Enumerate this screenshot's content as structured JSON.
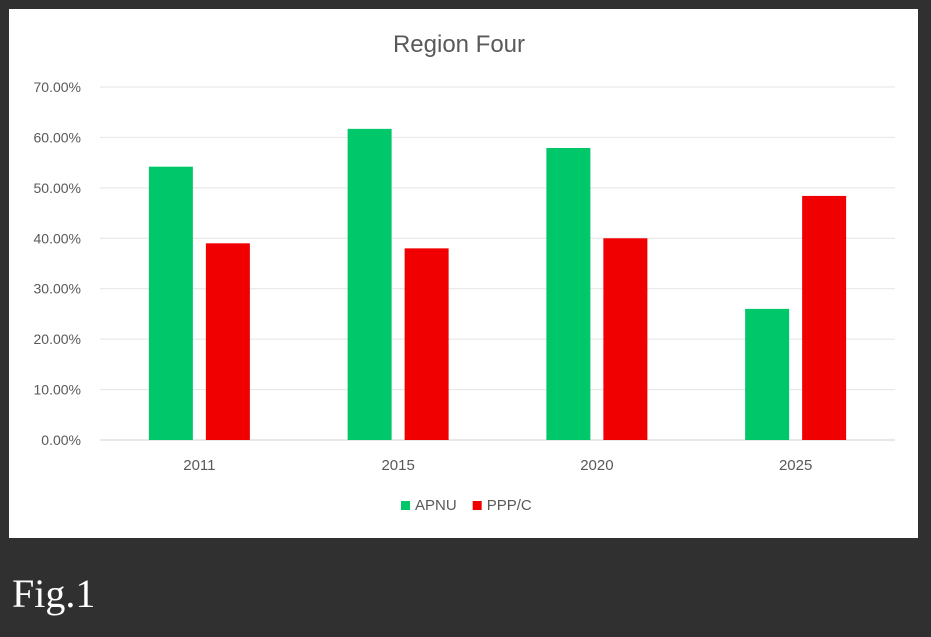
{
  "caption": "Fig.1",
  "chart_data": {
    "type": "bar",
    "title": "Region Four",
    "categories": [
      "2011",
      "2015",
      "2020",
      "2025"
    ],
    "series": [
      {
        "name": "APNU",
        "color": "#00c86a",
        "values": [
          54.2,
          61.7,
          57.9,
          26.0
        ]
      },
      {
        "name": "PPP/C",
        "color": "#f00000",
        "values": [
          39.0,
          38.0,
          40.0,
          48.4
        ]
      }
    ],
    "yticks": [
      "0.00%",
      "10.00%",
      "20.00%",
      "30.00%",
      "40.00%",
      "50.00%",
      "60.00%",
      "70.00%"
    ],
    "ylim": [
      0,
      70
    ],
    "grid": true,
    "legend": "bottom"
  }
}
